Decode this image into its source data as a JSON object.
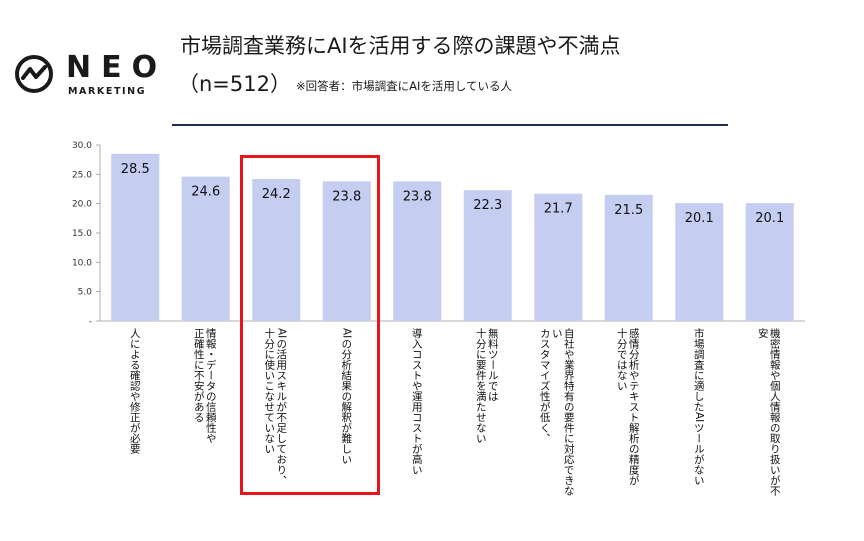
{
  "brand": {
    "name": "NEO",
    "sub": "MARKETING"
  },
  "header": {
    "title": "市場調査業務にAIを活用する際の課題や不満点",
    "n_label": "（n=512）",
    "note": "※回答者：市場調査にAIを活用している人"
  },
  "colors": {
    "bar": "#c5cdf0",
    "highlight": "#e8141c",
    "rule": "#1f2a5a"
  },
  "chart_data": {
    "type": "bar",
    "title": "市場調査業務にAIを活用する際の課題や不満点",
    "ylim": [
      0,
      30
    ],
    "yticks": [
      "30.0",
      "25.0",
      "20.0",
      "15.0",
      "10.0",
      "5.0",
      "-"
    ],
    "ytick_values": [
      30,
      25,
      20,
      15,
      10,
      5,
      0
    ],
    "categories": [
      [
        "人による確認や修正が必要"
      ],
      [
        "情報・データの信頼性や",
        "正確性に不安がある"
      ],
      [
        "AIの活用スキルが不足しており、",
        "十分に使いこなせていない"
      ],
      [
        "AIの分析結果の解釈が難しい"
      ],
      [
        "導入コストや運用コストが高い"
      ],
      [
        "無料ツールでは",
        "十分に要件を満たせない"
      ],
      [
        "自社や業界特有の要件に対応できな",
        "い",
        "カスタマイズ性が低く、"
      ],
      [
        "感情分析やテキスト解析の精度が",
        "十分ではない"
      ],
      [
        "市場調査に適したAIツールがない"
      ],
      [
        "機密情報や個人情報の取り扱いが不",
        "安"
      ]
    ],
    "values": [
      28.5,
      24.6,
      24.2,
      23.8,
      23.8,
      22.3,
      21.7,
      21.5,
      20.1,
      20.1
    ],
    "value_labels": [
      "28.5",
      "24.6",
      "24.2",
      "23.8",
      "23.8",
      "22.3",
      "21.7",
      "21.5",
      "20.1",
      "20.1"
    ],
    "highlighted": [
      2,
      3
    ]
  }
}
